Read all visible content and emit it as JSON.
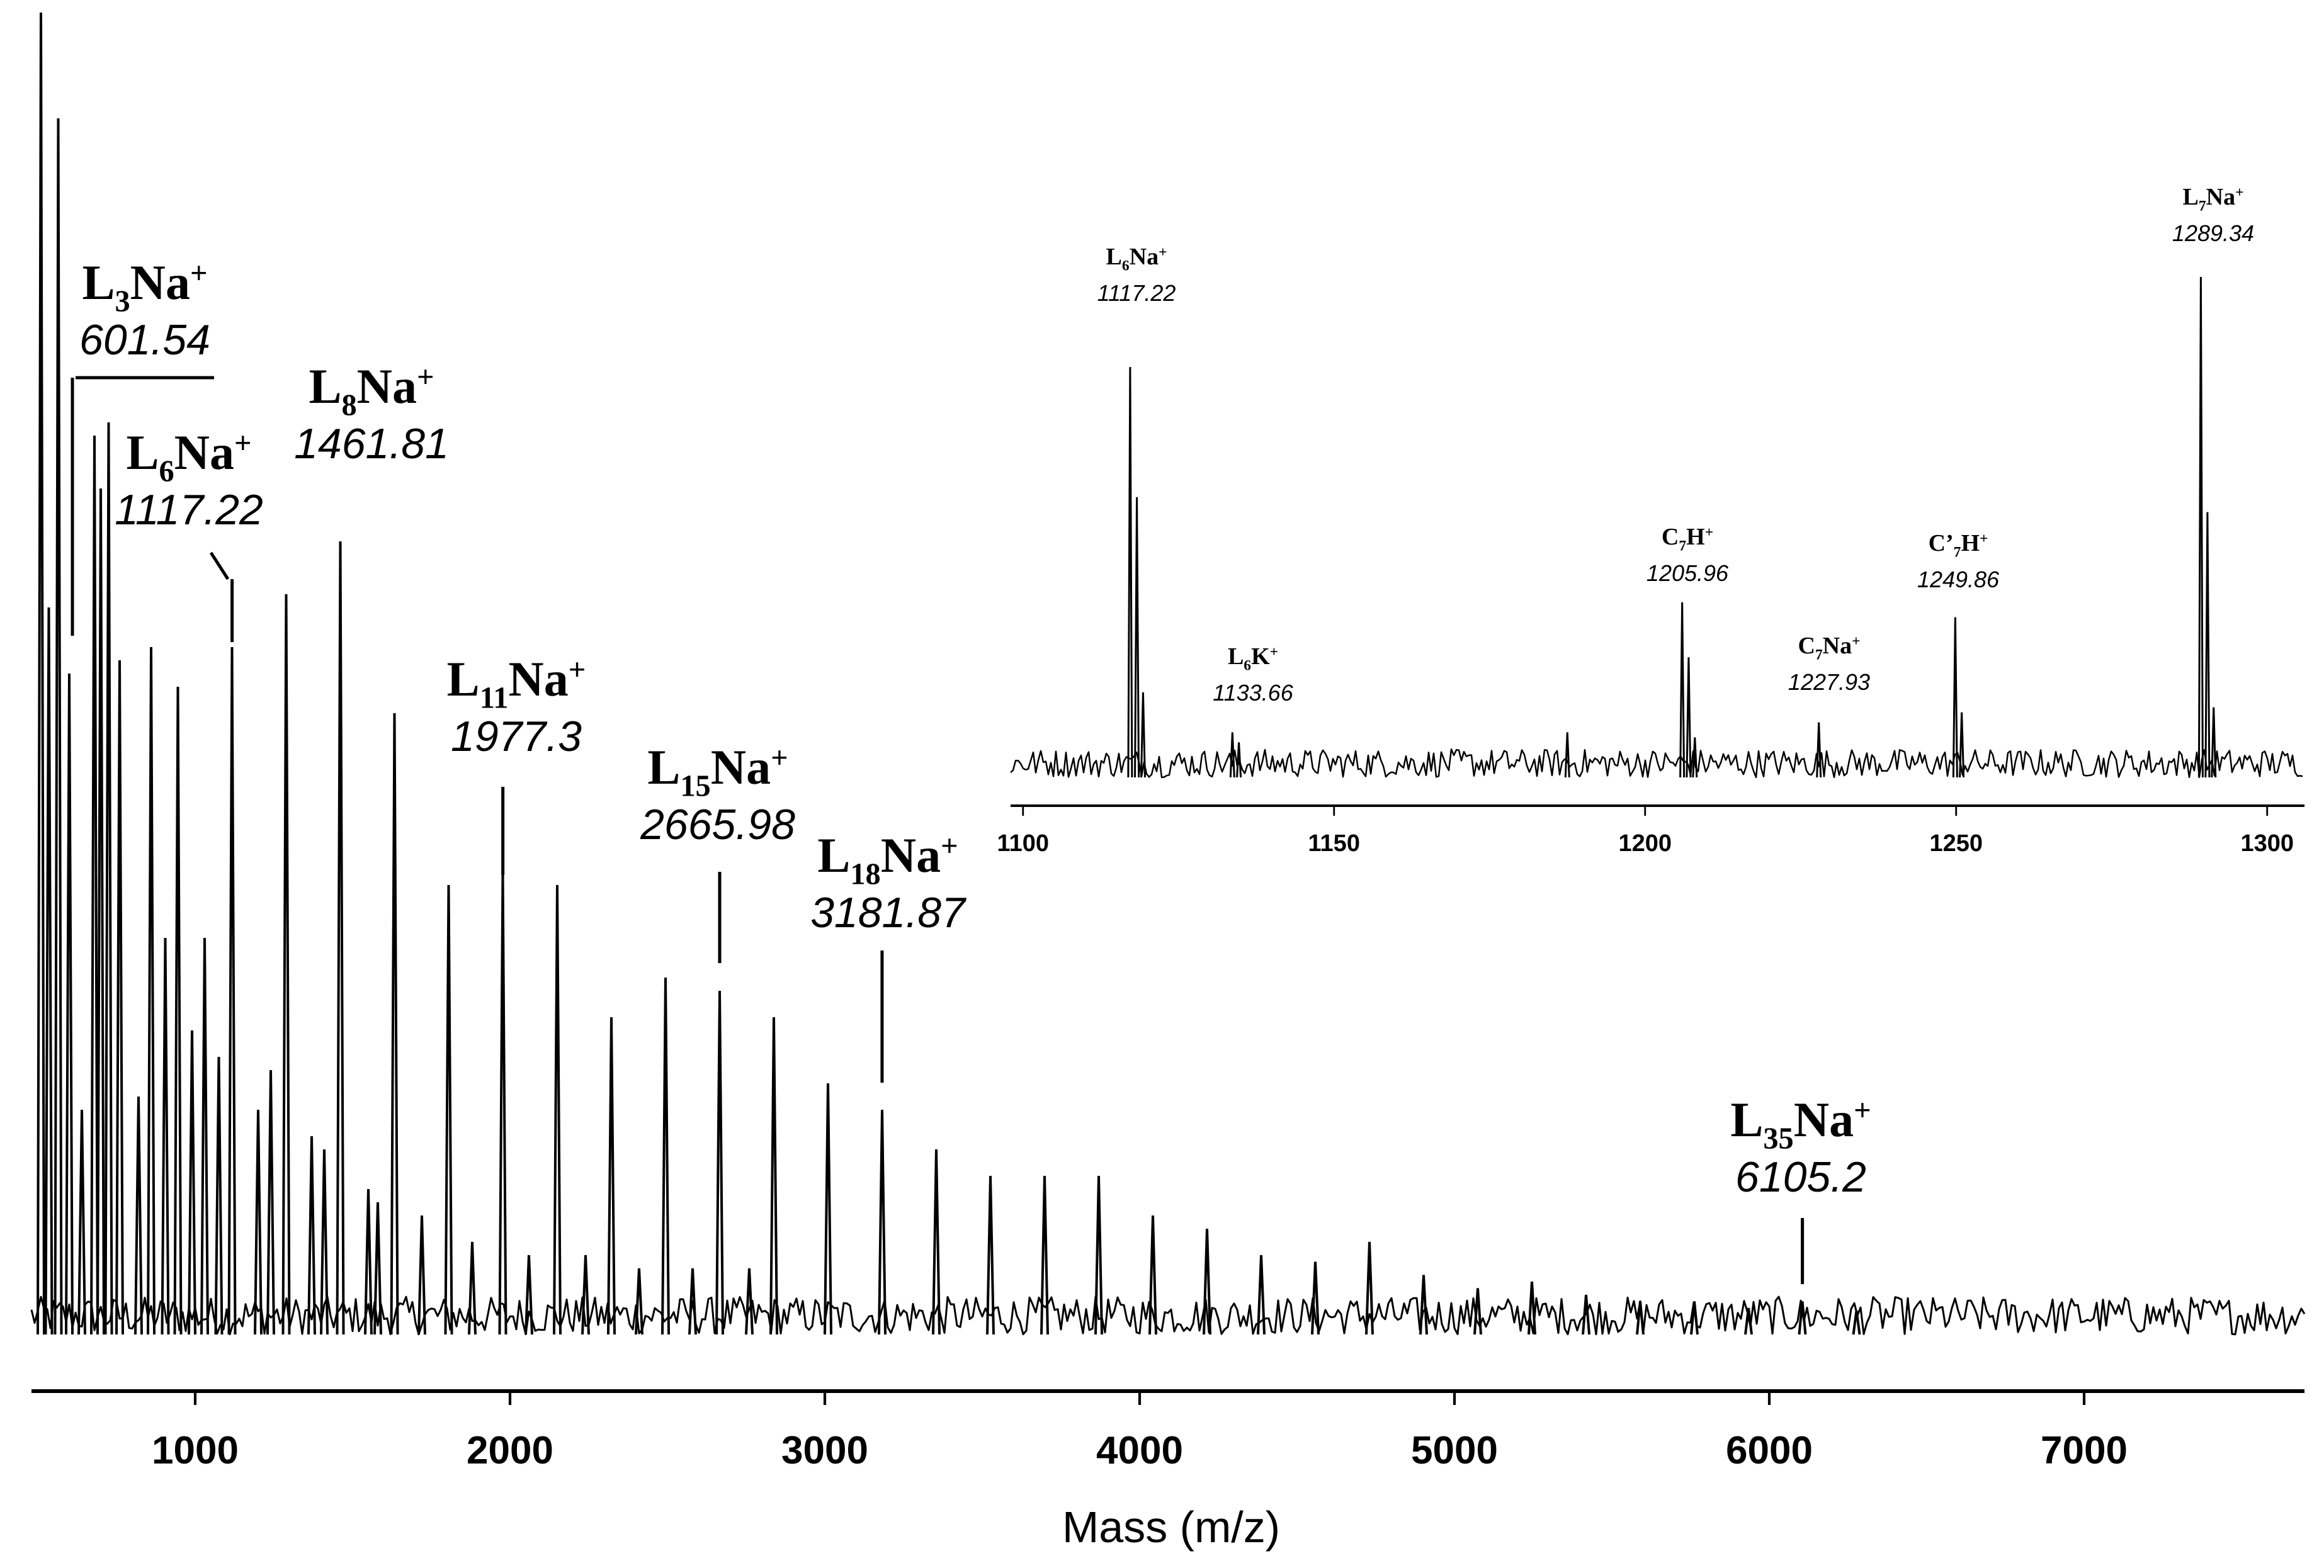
{
  "chart_data": [
    {
      "type": "line",
      "name": "main",
      "title": "",
      "xlabel": "Mass (m/z)",
      "ylabel": "",
      "xlim": [
        480,
        7700
      ],
      "ylim": [
        0,
        1.0
      ],
      "grid": false,
      "xticks": [
        {
          "value": 1000,
          "label": "1000"
        },
        {
          "value": 2000,
          "label": "2000"
        },
        {
          "value": 3000,
          "label": "3000"
        },
        {
          "value": 4000,
          "label": "4000"
        },
        {
          "value": 5000,
          "label": "5000"
        },
        {
          "value": 6000,
          "label": "6000"
        },
        {
          "value": 7000,
          "label": "7000"
        }
      ],
      "peaks": [
        [
          510,
          1.0
        ],
        [
          535,
          0.55
        ],
        [
          565,
          0.92
        ],
        [
          600,
          0.5
        ],
        [
          640,
          0.17
        ],
        [
          680,
          0.68
        ],
        [
          700,
          0.64
        ],
        [
          725,
          0.69
        ],
        [
          760,
          0.51
        ],
        [
          820,
          0.18
        ],
        [
          860,
          0.52
        ],
        [
          905,
          0.3
        ],
        [
          945,
          0.49
        ],
        [
          990,
          0.23
        ],
        [
          1030,
          0.3
        ],
        [
          1075,
          0.21
        ],
        [
          1117,
          0.52
        ],
        [
          1200,
          0.17
        ],
        [
          1240,
          0.2
        ],
        [
          1289,
          0.56
        ],
        [
          1370,
          0.15
        ],
        [
          1410,
          0.14
        ],
        [
          1461,
          0.6
        ],
        [
          1550,
          0.11
        ],
        [
          1580,
          0.1
        ],
        [
          1633,
          0.47
        ],
        [
          1720,
          0.09
        ],
        [
          1805,
          0.34
        ],
        [
          1880,
          0.07
        ],
        [
          1977,
          0.35
        ],
        [
          2060,
          0.06
        ],
        [
          2150,
          0.34
        ],
        [
          2240,
          0.06
        ],
        [
          2322,
          0.24
        ],
        [
          2410,
          0.05
        ],
        [
          2494,
          0.27
        ],
        [
          2580,
          0.05
        ],
        [
          2666,
          0.26
        ],
        [
          2760,
          0.05
        ],
        [
          2838,
          0.24
        ],
        [
          3010,
          0.19
        ],
        [
          3182,
          0.17
        ],
        [
          3354,
          0.14
        ],
        [
          3526,
          0.12
        ],
        [
          3698,
          0.12
        ],
        [
          3870,
          0.12
        ],
        [
          4042,
          0.09
        ],
        [
          4214,
          0.08
        ],
        [
          4386,
          0.06
        ],
        [
          4558,
          0.055
        ],
        [
          4730,
          0.07
        ],
        [
          4902,
          0.045
        ],
        [
          5074,
          0.035
        ],
        [
          5246,
          0.04
        ],
        [
          5418,
          0.03
        ],
        [
          5590,
          0.025
        ],
        [
          5762,
          0.025
        ],
        [
          5934,
          0.02
        ],
        [
          6105,
          0.025
        ],
        [
          6277,
          0.018
        ]
      ],
      "annotations": [
        {
          "ion": "L",
          "sub": "3",
          "charge": "Na",
          "sup": "+",
          "mass": "601.54",
          "x": 601.54
        },
        {
          "ion": "L",
          "sub": "6",
          "charge": "Na",
          "sup": "+",
          "mass": "1117.22",
          "x": 1117.22
        },
        {
          "ion": "L",
          "sub": "8",
          "charge": "Na",
          "sup": "+",
          "mass": "1461.81",
          "x": 1461.81
        },
        {
          "ion": "L",
          "sub": "11",
          "charge": "Na",
          "sup": "+",
          "mass": "1977.3",
          "x": 1977.3
        },
        {
          "ion": "L",
          "sub": "15",
          "charge": "Na",
          "sup": "+",
          "mass": "2665.98",
          "x": 2665.98
        },
        {
          "ion": "L",
          "sub": "18",
          "charge": "Na",
          "sup": "+",
          "mass": "3181.87",
          "x": 3181.87
        },
        {
          "ion": "L",
          "sub": "35",
          "charge": "Na",
          "sup": "+",
          "mass": "6105.2",
          "x": 6105.2
        }
      ]
    },
    {
      "type": "line",
      "name": "inset",
      "title": "",
      "xlabel": "",
      "ylabel": "",
      "xlim": [
        1098,
        1306
      ],
      "ylim": [
        0,
        1.0
      ],
      "grid": false,
      "xticks": [
        {
          "value": 1100,
          "label": "1100"
        },
        {
          "value": 1150,
          "label": "1150"
        },
        {
          "value": 1200,
          "label": "1200"
        },
        {
          "value": 1250,
          "label": "1250"
        },
        {
          "value": 1300,
          "label": "1300"
        }
      ],
      "peaks": [
        [
          1117.22,
          0.82
        ],
        [
          1118.3,
          0.56
        ],
        [
          1119.3,
          0.17
        ],
        [
          1133.66,
          0.09
        ],
        [
          1134.7,
          0.07
        ],
        [
          1187.5,
          0.09
        ],
        [
          1205.96,
          0.35
        ],
        [
          1207.0,
          0.24
        ],
        [
          1208.0,
          0.08
        ],
        [
          1227.93,
          0.11
        ],
        [
          1249.86,
          0.32
        ],
        [
          1250.9,
          0.13
        ],
        [
          1289.34,
          1.0
        ],
        [
          1290.4,
          0.53
        ],
        [
          1291.4,
          0.14
        ]
      ],
      "annotations": [
        {
          "ion": "L",
          "sub": "6",
          "charge": "Na",
          "sup": "+",
          "mass": "1117.22",
          "x": 1117.22
        },
        {
          "ion": "L",
          "sub": "6",
          "charge": "K",
          "sup": "+",
          "mass": "1133.66",
          "x": 1133.66
        },
        {
          "ion": "C",
          "sub": "7",
          "charge": "H",
          "sup": "+",
          "mass": "1205.96",
          "x": 1205.96
        },
        {
          "ion": "C",
          "sub": "7",
          "charge": "Na",
          "sup": "+",
          "mass": "1227.93",
          "x": 1227.93
        },
        {
          "ion": "C’",
          "sub": "7",
          "charge": "H",
          "sup": "+",
          "mass": "1249.86",
          "x": 1249.86
        },
        {
          "ion": "L",
          "sub": "7",
          "charge": "Na",
          "sup": "+",
          "mass": "1289.34",
          "x": 1289.34
        }
      ]
    }
  ]
}
